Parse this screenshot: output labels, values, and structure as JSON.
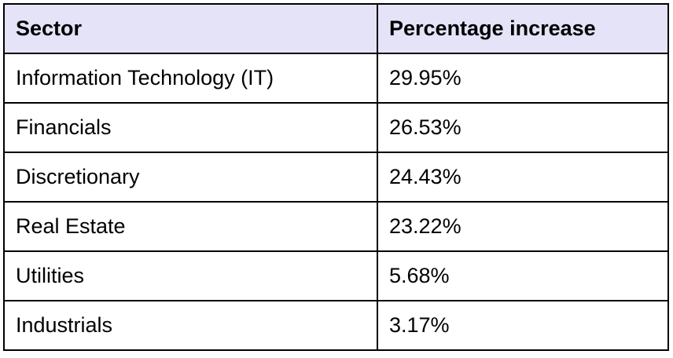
{
  "table": {
    "headers": [
      "Sector",
      "Percentage increase"
    ],
    "rows": [
      [
        "Information Technology (IT)",
        "29.95%"
      ],
      [
        "Financials",
        "26.53%"
      ],
      [
        "Discretionary",
        "24.43%"
      ],
      [
        "Real Estate",
        "23.22%"
      ],
      [
        "Utilities",
        "5.68%"
      ],
      [
        "Industrials",
        "3.17%"
      ]
    ]
  },
  "colors": {
    "header_background": "#e5e3f8",
    "border": "#000000",
    "text": "#000000"
  }
}
